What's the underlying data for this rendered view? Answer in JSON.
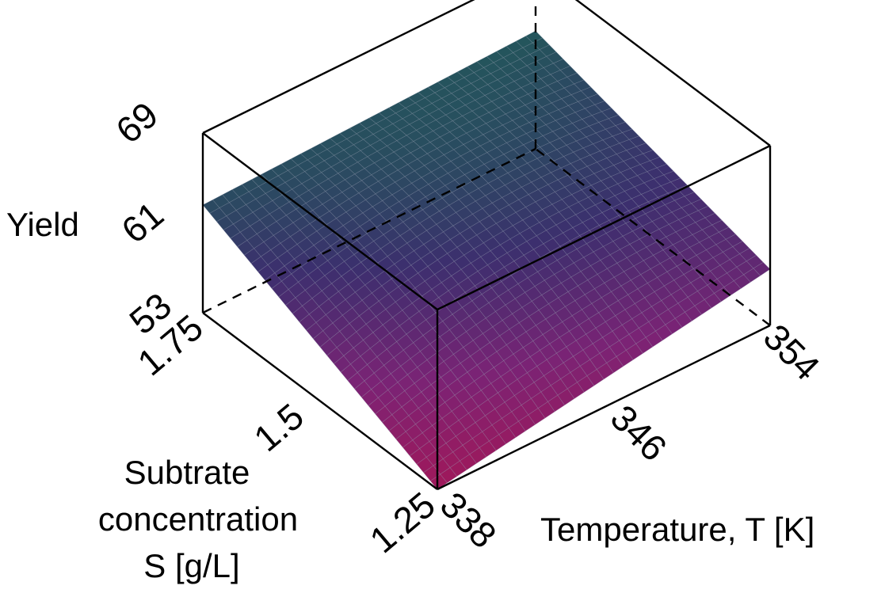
{
  "chart_data": {
    "type": "surface3d",
    "x_axis": {
      "label": "Temperature, T [K]",
      "range": [
        338,
        354
      ],
      "ticks": [
        338,
        346,
        354
      ],
      "tick_labels": [
        "338",
        "346",
        "354"
      ]
    },
    "y_axis": {
      "label_lines": [
        "Subtrate",
        "concentration",
        "S [g/L]"
      ],
      "range": [
        1.25,
        1.75
      ],
      "ticks": [
        1.25,
        1.5,
        1.75
      ],
      "tick_labels": [
        "1.25",
        "1.5",
        "1.75"
      ]
    },
    "z_axis": {
      "label": "Yield",
      "range": [
        53,
        69
      ],
      "ticks": [
        53,
        61,
        69
      ],
      "tick_labels": [
        "53",
        "61",
        "69"
      ]
    },
    "surface_corners": [
      {
        "T": 338,
        "S": 1.25,
        "yield": 53.0
      },
      {
        "T": 354,
        "S": 1.25,
        "yield": 58.0
      },
      {
        "T": 338,
        "S": 1.75,
        "yield": 62.6
      },
      {
        "T": 354,
        "S": 1.75,
        "yield": 63.5
      }
    ],
    "surface_center": {
      "T": 346,
      "S": 1.5,
      "yield": 61.0
    },
    "colormap": [
      "#a0185a",
      "#7a2375",
      "#3c2f6e",
      "#1f5c58"
    ],
    "grid": false
  }
}
